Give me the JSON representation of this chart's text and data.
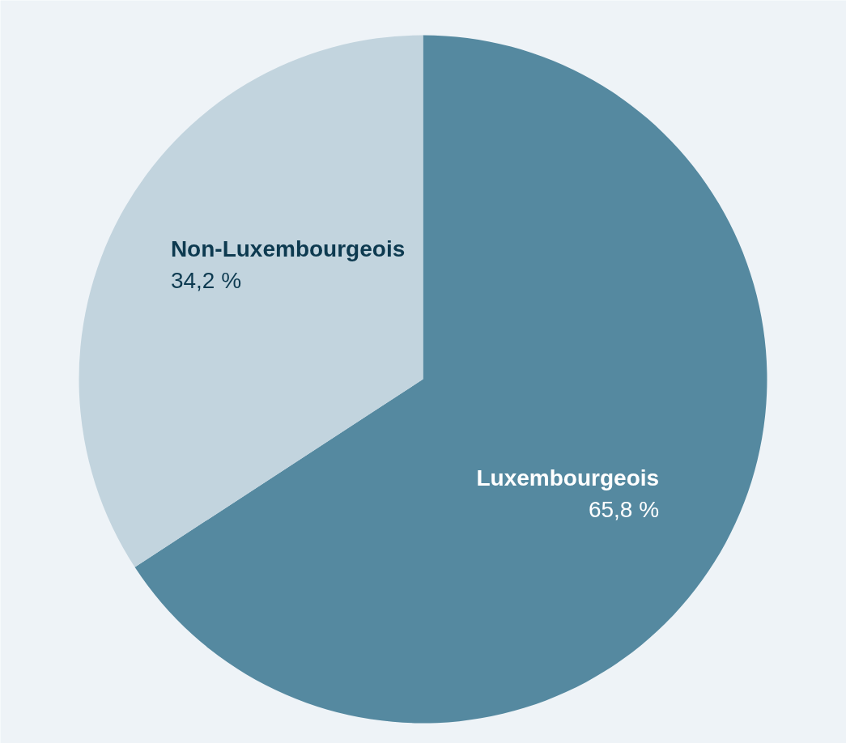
{
  "chart_data": {
    "type": "pie",
    "categories": [
      "Luxembourgeois",
      "Non-Luxembourgeois"
    ],
    "values": [
      65.8,
      34.2
    ],
    "colors": [
      "#5589a0",
      "#c2d4de"
    ],
    "value_labels": [
      "65,8 %",
      "34,2 %"
    ]
  }
}
